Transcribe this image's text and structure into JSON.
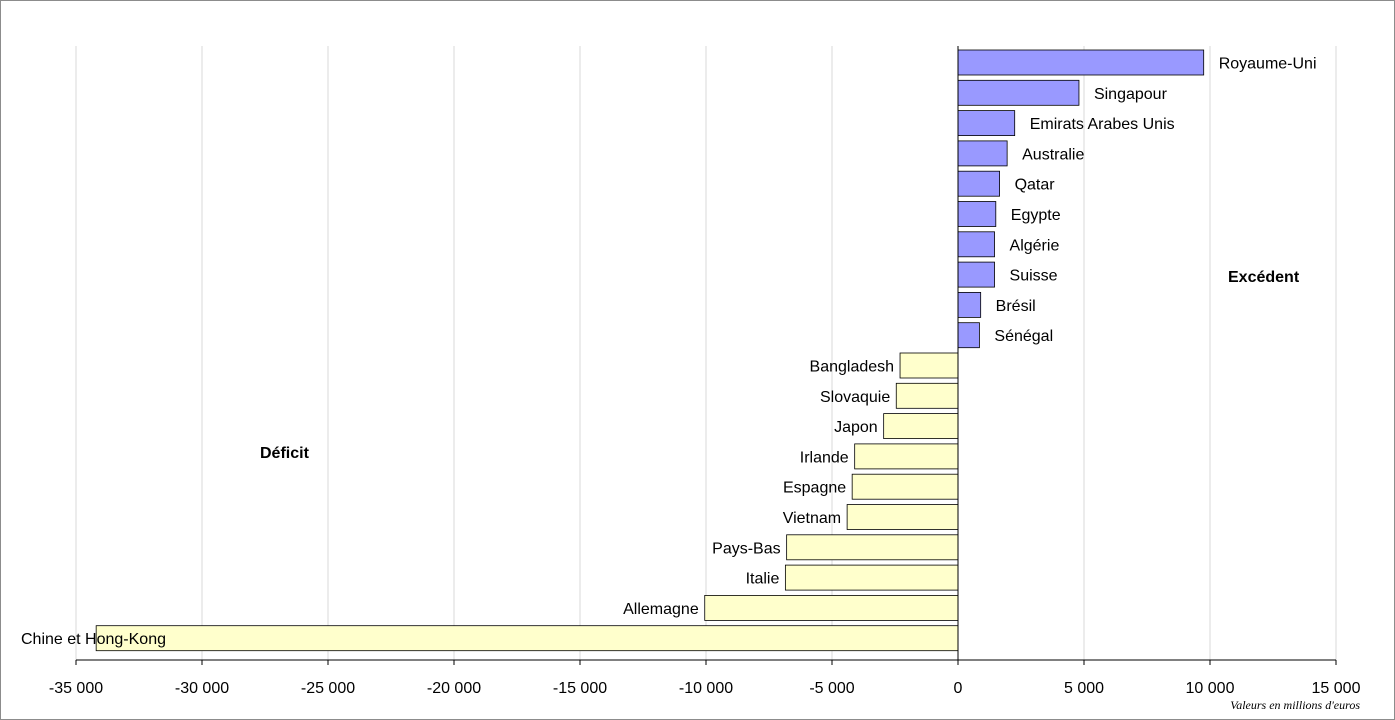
{
  "chart_data": {
    "type": "bar",
    "orientation": "horizontal",
    "categories": [
      "Royaume-Uni",
      "Singapour",
      "Emirats Arabes Unis",
      "Australie",
      "Qatar",
      "Egypte",
      "Algérie",
      "Suisse",
      "Brésil",
      "Sénégal",
      "Bangladesh",
      "Slovaquie",
      "Japon",
      "Irlande",
      "Espagne",
      "Vietnam",
      "Pays-Bas",
      "Italie",
      "Allemagne",
      "Chine et Hong-Kong"
    ],
    "values": [
      9750,
      4800,
      2250,
      1950,
      1650,
      1500,
      1450,
      1450,
      900,
      850,
      -2300,
      -2450,
      -2950,
      -4100,
      -4200,
      -4400,
      -6800,
      -6850,
      -10050,
      -34200
    ],
    "xlim": [
      -35000,
      15000
    ],
    "xticks": [
      -35000,
      -30000,
      -25000,
      -20000,
      -15000,
      -10000,
      -5000,
      0,
      5000,
      10000,
      15000
    ],
    "xtick_labels": [
      "-35 000",
      "-30 000",
      "-25 000",
      "-20 000",
      "-15 000",
      "-10 000",
      "-5 000",
      "0",
      "5 000",
      "10 000",
      "15 000"
    ],
    "annotations": {
      "surplus": "Excédent",
      "deficit": "Déficit"
    },
    "unit_note": "Valeurs en millions d'euros",
    "grid": "vertical",
    "colors": {
      "positive": "#9999ff",
      "negative": "#ffffcc",
      "outline": "#000000",
      "grid": "#d9d9d9"
    }
  }
}
